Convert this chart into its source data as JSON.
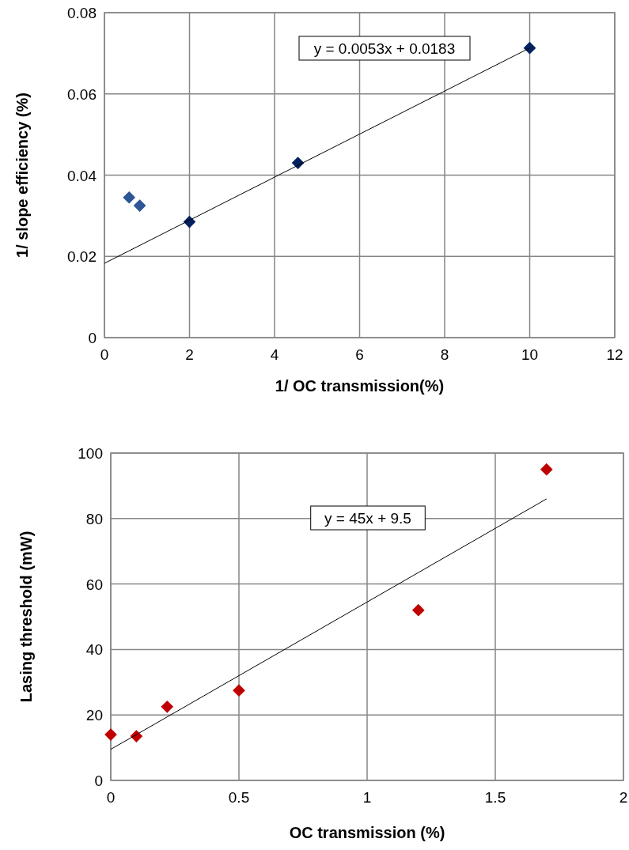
{
  "chart_data": [
    {
      "type": "scatter",
      "xlabel": "1/ OC transmission(%)",
      "ylabel": "1/ slope efficiency (%)",
      "xlim": [
        0,
        12
      ],
      "xticks": [
        0,
        2,
        4,
        6,
        8,
        10,
        12
      ],
      "ylim": [
        0,
        0.08
      ],
      "yticks": [
        0,
        0.02,
        0.04,
        0.06,
        0.08
      ],
      "grid": true,
      "marker": "diamond",
      "annotations": [
        "y = 0.0053x + 0.0183"
      ],
      "series": [
        {
          "color": "#002060",
          "x": [
            2,
            4.55,
            10
          ],
          "values": [
            0.0285,
            0.043,
            0.0713
          ]
        },
        {
          "color": "#2f5597",
          "x": [
            0.58,
            0.83
          ],
          "values": [
            0.0345,
            0.0325
          ]
        },
        {
          "type": "line",
          "color": "#000000",
          "marker": "none",
          "x": [
            0,
            10
          ],
          "values": [
            0.0183,
            0.0713
          ]
        }
      ]
    },
    {
      "type": "scatter",
      "xlabel": "OC transmission (%)",
      "ylabel": "Lasing threshold (mW)",
      "xlim": [
        0,
        2
      ],
      "xticks": [
        0,
        0.5,
        1,
        1.5,
        2
      ],
      "ylim": [
        0,
        100
      ],
      "yticks": [
        0,
        20,
        40,
        60,
        80,
        100
      ],
      "grid": true,
      "marker": "diamond",
      "annotations": [
        "y = 45x + 9.5"
      ],
      "series": [
        {
          "color": "#c00000",
          "x": [
            0,
            0.1,
            0.22,
            0.5,
            1.2,
            1.7
          ],
          "values": [
            14,
            13.5,
            22.5,
            27.5,
            52,
            95
          ]
        },
        {
          "type": "line",
          "color": "#000000",
          "marker": "none",
          "x": [
            0,
            1.7
          ],
          "values": [
            9.5,
            86
          ]
        }
      ]
    }
  ]
}
